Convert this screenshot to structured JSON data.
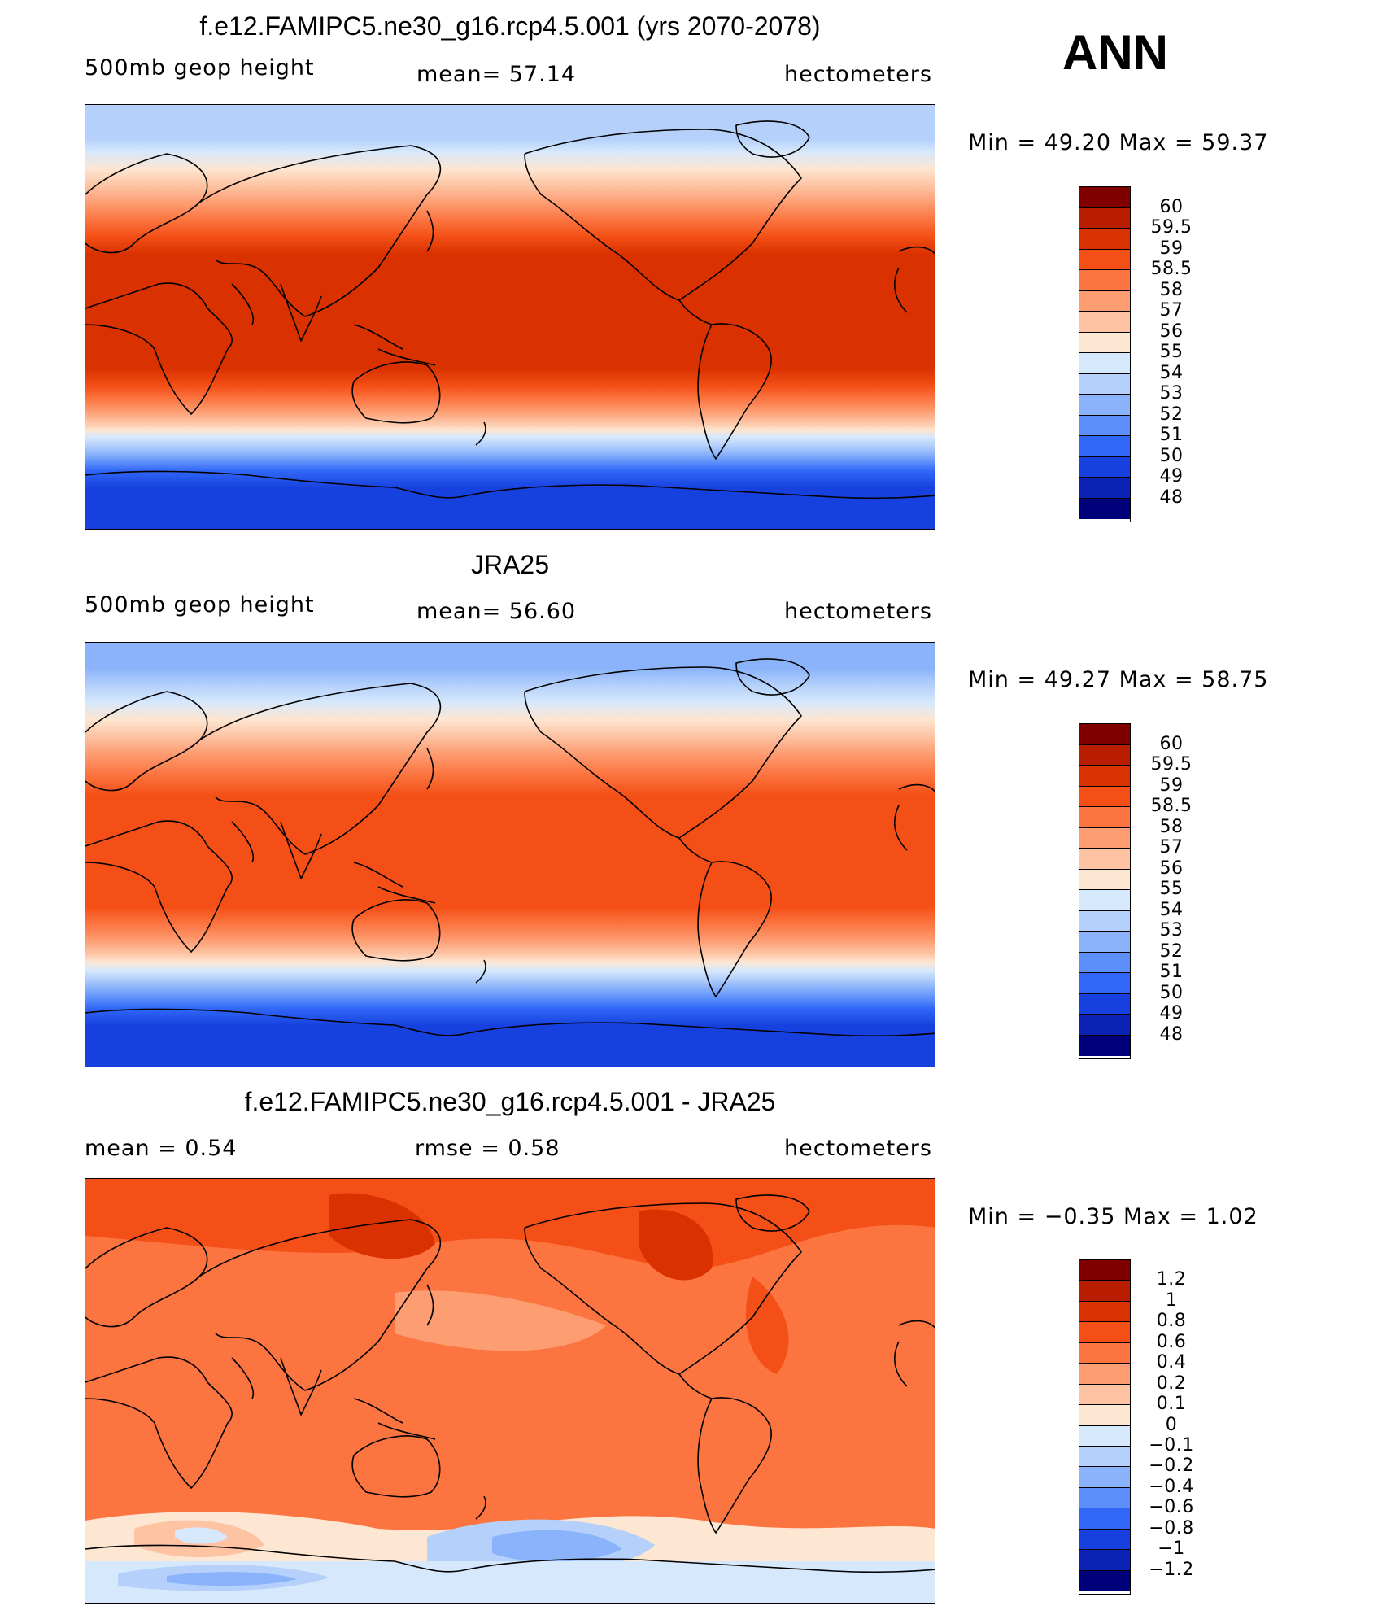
{
  "season": "ANN",
  "panels": [
    {
      "title": "f.e12.FAMIPC5.ne30_g16.rcp4.5.001 (yrs 2070-2078)",
      "left_label": "500mb  geop  height",
      "mid_label": "mean=   57.14",
      "right_label": "hectometers",
      "minmax": "Min  =    49.20  Max  =    59.37"
    },
    {
      "title": "JRA25",
      "left_label": "500mb  geop  height",
      "mid_label": "mean=   56.60",
      "right_label": "hectometers",
      "minmax": "Min  =    49.27  Max  =    58.75"
    },
    {
      "title": "f.e12.FAMIPC5.ne30_g16.rcp4.5.001 - JRA25",
      "left_label": "mean  =      0.54",
      "mid_label": "rmse  =      0.58",
      "right_label": "hectometers",
      "minmax": "Min  =   −0.35  Max  =       1.02"
    }
  ],
  "colorbars": {
    "abs": {
      "labels": [
        "60",
        "59.5",
        "59",
        "58.5",
        "58",
        "57",
        "56",
        "55",
        "54",
        "53",
        "52",
        "51",
        "50",
        "49",
        "48"
      ],
      "colors": [
        "#800000",
        "#b81d00",
        "#d93200",
        "#f44f16",
        "#fc7440",
        "#fd9d72",
        "#fdc3a3",
        "#fde6d2",
        "#d6e8fb",
        "#b4d0fb",
        "#8bb3fb",
        "#5d8ffb",
        "#3067f6",
        "#1741df",
        "#0b23b5",
        "#00007a"
      ]
    },
    "diff": {
      "labels": [
        "1.2",
        "1",
        "0.8",
        "0.6",
        "0.4",
        "0.2",
        "0.1",
        "0",
        "−0.1",
        "−0.2",
        "−0.4",
        "−0.6",
        "−0.8",
        "−1",
        "−1.2"
      ],
      "colors": [
        "#800000",
        "#b81d00",
        "#d93200",
        "#f44f16",
        "#fc7440",
        "#fd9d72",
        "#fdc3a3",
        "#fde6d2",
        "#d6e8fb",
        "#b4d0fb",
        "#8bb3fb",
        "#5d8ffb",
        "#3067f6",
        "#1741df",
        "#0b23b5",
        "#00007a"
      ]
    }
  }
}
